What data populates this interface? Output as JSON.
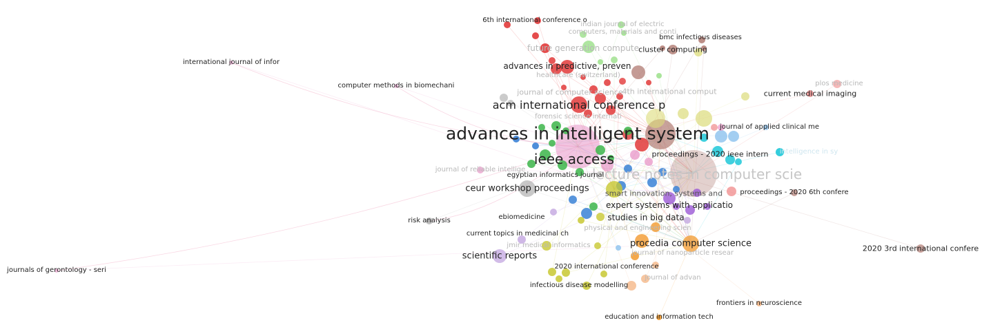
{
  "map": {
    "labels": {
      "advances_in_intelligent": "advances in intelligent system",
      "ieee_access": "ieee access",
      "acm_conference": "acm international conference p",
      "advances_in_predictive": "advances in predictive, preven",
      "ceur": "ceur workshop proceedings",
      "lecture_notes": "lecture notes in computer scie",
      "expert_systems": "expert systems with applicatio",
      "studies_big_data": "studies in big data",
      "procedia": "procedia computer science",
      "scientific_reports": "scientific reports",
      "sixth_conf": "6th international conference o",
      "indian_journal": "indian journal of electric",
      "computers_materials": "computers, materials and conti",
      "bmc": "bmc infectious diseases",
      "cluster": "cluster computing",
      "future_generation": "future generation compute",
      "healthcare": "healthcare (switzerland)",
      "intl_journal_infor": "international journal of infor",
      "computer_methods": "computer methods in biomechani",
      "journal_computer_science": "journal of computer science",
      "fourth_conf": "4th international comput",
      "plos": "plos medicine",
      "current_medical": "current medical imaging",
      "forensic": "forensic science internati",
      "journal_applied": "journal of applied clinical me",
      "proc_2020_ieee": "proceedings - 2020 ieee intern",
      "intelligence_sy": "intelligence in sy",
      "reliable": "journal of reliable intellige",
      "egyptian": "egyptian informatics journal",
      "smart_innovation": "smart innovation, systems and",
      "proc_2020_6th": "proceedings - 2020 6th confere",
      "risk": "risk analysis",
      "ebiomedicine": "ebiomedicine",
      "physical": "physical and engineering scien",
      "current_topics": "current topics in medicinal ch",
      "jmir": "jmir medical informatics",
      "nanoparticle": "journal of nanoparticle resear",
      "third_conf": "2020 3rd international confere",
      "gerontology": "journals of gerontology - seri",
      "conf_2020": "2020 international conference",
      "advances_small": "journal of advan",
      "infectious": "infectious disease modelling",
      "frontiers": "frontiers in neuroscience",
      "education": "education and information tech"
    },
    "cluster_colors": {
      "red": "#e23a3a",
      "green": "#3cb54a",
      "blue": "#3b82d6",
      "yellow": "#c8c832",
      "purple": "#9b59d6",
      "cyan": "#1ec8d8",
      "orange": "#f29a2e",
      "brown": "#b07a72",
      "pink": "#e896c8",
      "lightgreen": "#9be08a",
      "lightred": "#f08a8a",
      "lightpurple": "#c3a6e0",
      "gray": "#b5b5b5",
      "lightblue": "#8cc2ee",
      "peach": "#f5b888",
      "khaki": "#dcdc7a"
    }
  }
}
